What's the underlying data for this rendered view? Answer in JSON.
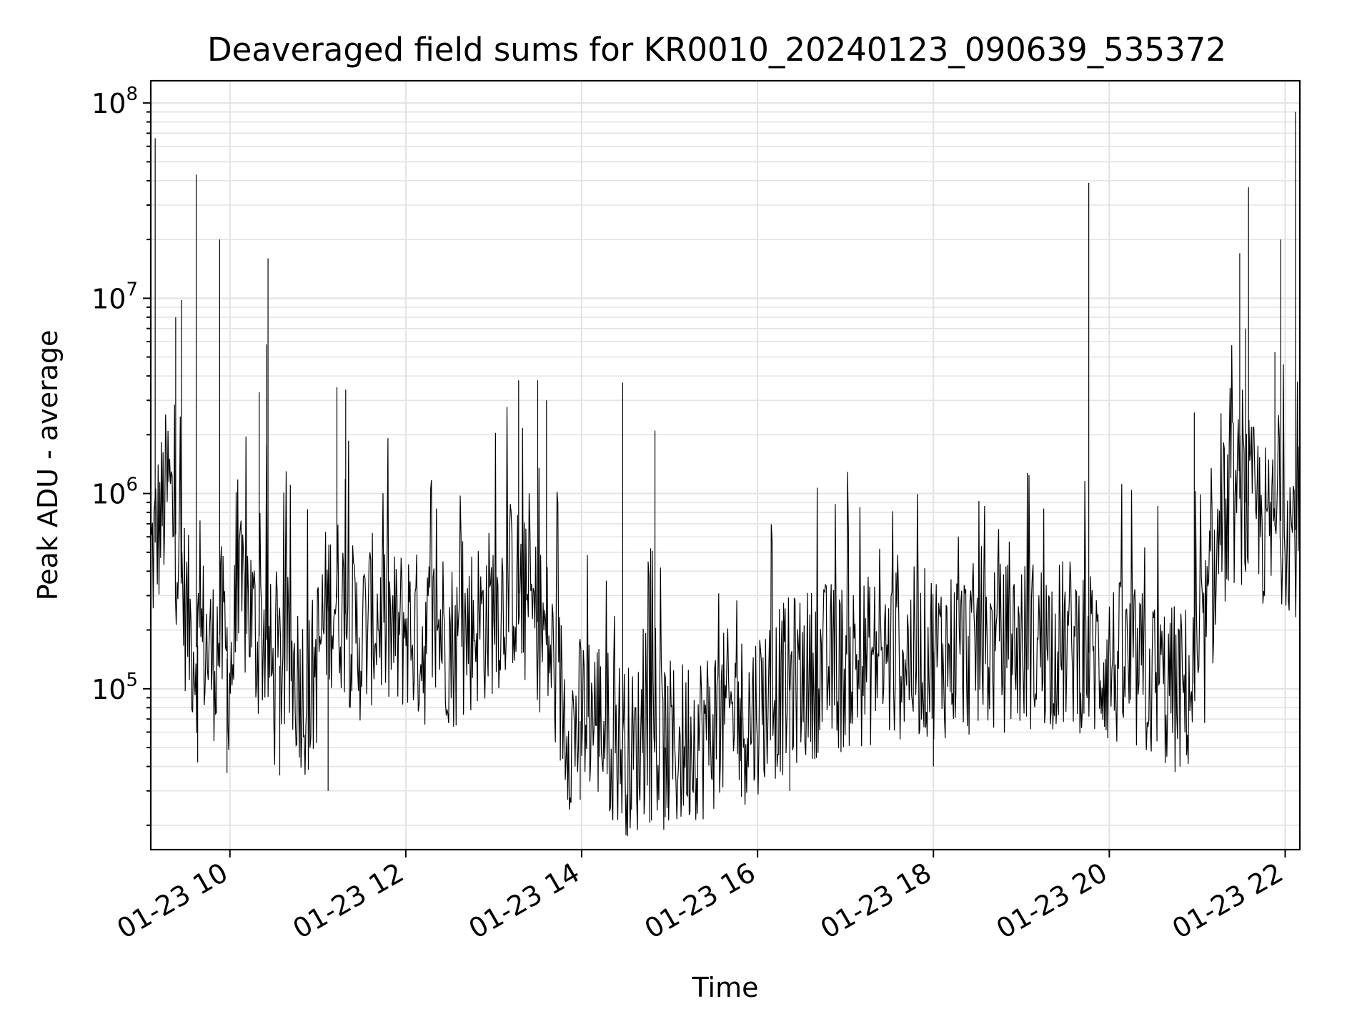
{
  "chart_data": {
    "type": "line",
    "title": "Deaveraged field sums for KR0010_20240123_090639_535372",
    "xlabel": "Time",
    "ylabel": "Peak ADU - average",
    "y_scale": "log",
    "ylim": [
      15000,
      130000000
    ],
    "xlim": [
      "2024-01-23 09:06",
      "2024-01-23 22:10"
    ],
    "grid": true,
    "x_ticks": [
      "01-23 10",
      "01-23 12",
      "01-23 14",
      "01-23 16",
      "01-23 18",
      "01-23 20",
      "01-23 22"
    ],
    "y_ticks": [
      {
        "value": 100000,
        "base": "10",
        "exp": "5"
      },
      {
        "value": 1000000,
        "base": "10",
        "exp": "6"
      },
      {
        "value": 10000000,
        "base": "10",
        "exp": "7"
      },
      {
        "value": 100000000,
        "base": "10",
        "exp": "8"
      }
    ],
    "series": [
      {
        "color": "#000000",
        "x": [
          "2024-01-23 09:06",
          "2024-01-23 09:12",
          "2024-01-23 09:18",
          "2024-01-23 09:24",
          "2024-01-23 09:30",
          "2024-01-23 09:36",
          "2024-01-23 09:42",
          "2024-01-23 09:48",
          "2024-01-23 09:54",
          "2024-01-23 10:00",
          "2024-01-23 10:06",
          "2024-01-23 10:12",
          "2024-01-23 10:18",
          "2024-01-23 10:24",
          "2024-01-23 10:30",
          "2024-01-23 10:36",
          "2024-01-23 10:42",
          "2024-01-23 10:48",
          "2024-01-23 10:54",
          "2024-01-23 11:00",
          "2024-01-23 11:06",
          "2024-01-23 11:12",
          "2024-01-23 11:18",
          "2024-01-23 11:24",
          "2024-01-23 11:30",
          "2024-01-23 11:36",
          "2024-01-23 11:42",
          "2024-01-23 11:48",
          "2024-01-23 11:54",
          "2024-01-23 12:00",
          "2024-01-23 12:06",
          "2024-01-23 12:12",
          "2024-01-23 12:18",
          "2024-01-23 12:24",
          "2024-01-23 12:30",
          "2024-01-23 12:36",
          "2024-01-23 12:42",
          "2024-01-23 12:48",
          "2024-01-23 12:54",
          "2024-01-23 13:00",
          "2024-01-23 13:06",
          "2024-01-23 13:12",
          "2024-01-23 13:18",
          "2024-01-23 13:24",
          "2024-01-23 13:30",
          "2024-01-23 13:36",
          "2024-01-23 13:42",
          "2024-01-23 13:48",
          "2024-01-23 13:54",
          "2024-01-23 14:00",
          "2024-01-23 14:06",
          "2024-01-23 14:12",
          "2024-01-23 14:18",
          "2024-01-23 14:24",
          "2024-01-23 14:30",
          "2024-01-23 14:36",
          "2024-01-23 14:42",
          "2024-01-23 14:48",
          "2024-01-23 14:54",
          "2024-01-23 15:00",
          "2024-01-23 15:06",
          "2024-01-23 15:12",
          "2024-01-23 15:18",
          "2024-01-23 15:24",
          "2024-01-23 15:30",
          "2024-01-23 15:36",
          "2024-01-23 15:42",
          "2024-01-23 15:48",
          "2024-01-23 15:54",
          "2024-01-23 16:00",
          "2024-01-23 16:06",
          "2024-01-23 16:12",
          "2024-01-23 16:18",
          "2024-01-23 16:24",
          "2024-01-23 16:30",
          "2024-01-23 16:36",
          "2024-01-23 16:42",
          "2024-01-23 16:48",
          "2024-01-23 16:54",
          "2024-01-23 17:00",
          "2024-01-23 17:06",
          "2024-01-23 17:12",
          "2024-01-23 17:18",
          "2024-01-23 17:24",
          "2024-01-23 17:30",
          "2024-01-23 17:36",
          "2024-01-23 17:42",
          "2024-01-23 17:48",
          "2024-01-23 17:54",
          "2024-01-23 18:00",
          "2024-01-23 18:06",
          "2024-01-23 18:12",
          "2024-01-23 18:18",
          "2024-01-23 18:24",
          "2024-01-23 18:30",
          "2024-01-23 18:36",
          "2024-01-23 18:42",
          "2024-01-23 18:48",
          "2024-01-23 18:54",
          "2024-01-23 19:00",
          "2024-01-23 19:06",
          "2024-01-23 19:12",
          "2024-01-23 19:18",
          "2024-01-23 19:24",
          "2024-01-23 19:30",
          "2024-01-23 19:36",
          "2024-01-23 19:42",
          "2024-01-23 19:48",
          "2024-01-23 19:54",
          "2024-01-23 20:00",
          "2024-01-23 20:06",
          "2024-01-23 20:12",
          "2024-01-23 20:18",
          "2024-01-23 20:24",
          "2024-01-23 20:30",
          "2024-01-23 20:36",
          "2024-01-23 20:42",
          "2024-01-23 20:48",
          "2024-01-23 20:54",
          "2024-01-23 21:00",
          "2024-01-23 21:06",
          "2024-01-23 21:12",
          "2024-01-23 21:18",
          "2024-01-23 21:24",
          "2024-01-23 21:30",
          "2024-01-23 21:36",
          "2024-01-23 21:42",
          "2024-01-23 21:48",
          "2024-01-23 21:54",
          "2024-01-23 22:00",
          "2024-01-23 22:06"
        ],
        "y": [
          450000,
          700000,
          1100000,
          550000,
          250000,
          160000,
          180000,
          140000,
          200000,
          120000,
          250000,
          300000,
          180000,
          200000,
          100000,
          150000,
          130000,
          110000,
          90000,
          150000,
          260000,
          300000,
          250000,
          200000,
          180000,
          220000,
          240000,
          200000,
          180000,
          220000,
          190000,
          170000,
          200000,
          210000,
          180000,
          160000,
          200000,
          220000,
          230000,
          260000,
          280000,
          350000,
          300000,
          250000,
          220000,
          180000,
          120000,
          80000,
          60000,
          70000,
          80000,
          70000,
          60000,
          55000,
          50000,
          45000,
          60000,
          55000,
          50000,
          50000,
          48000,
          55000,
          60000,
          58000,
          65000,
          70000,
          75000,
          72000,
          70000,
          80000,
          90000,
          95000,
          100000,
          110000,
          115000,
          120000,
          125000,
          130000,
          128000,
          130000,
          135000,
          138000,
          140000,
          145000,
          140000,
          150000,
          148000,
          152000,
          150000,
          155000,
          150000,
          158000,
          160000,
          155000,
          162000,
          160000,
          158000,
          165000,
          168000,
          165000,
          170000,
          168000,
          172000,
          170000,
          165000,
          175000,
          160000,
          150000,
          140000,
          135000,
          130000,
          125000,
          120000,
          115000,
          110000,
          105000,
          100000,
          95000,
          100000,
          110000,
          200000,
          400000,
          700000,
          900000,
          950000,
          850000,
          800000,
          600000,
          700000,
          750000,
          650000
        ],
        "spikes": [
          {
            "x": "2024-01-23 09:09",
            "y": 66000000
          },
          {
            "x": "2024-01-23 09:23",
            "y": 8000000
          },
          {
            "x": "2024-01-23 09:27",
            "y": 9800000
          },
          {
            "x": "2024-01-23 09:37",
            "y": 43000000
          },
          {
            "x": "2024-01-23 09:53",
            "y": 20000000
          },
          {
            "x": "2024-01-23 10:26",
            "y": 16000000
          },
          {
            "x": "2024-01-23 10:25",
            "y": 5800000
          },
          {
            "x": "2024-01-23 10:20",
            "y": 3300000
          },
          {
            "x": "2024-01-23 11:13",
            "y": 3500000
          },
          {
            "x": "2024-01-23 11:19",
            "y": 3400000
          },
          {
            "x": "2024-01-23 13:17",
            "y": 3800000
          },
          {
            "x": "2024-01-23 13:30",
            "y": 3800000
          },
          {
            "x": "2024-01-23 13:36",
            "y": 3000000
          },
          {
            "x": "2024-01-23 14:28",
            "y": 3700000
          },
          {
            "x": "2024-01-23 14:50",
            "y": 2100000
          },
          {
            "x": "2024-01-23 19:46",
            "y": 39000000
          },
          {
            "x": "2024-01-23 20:58",
            "y": 2600000
          },
          {
            "x": "2024-01-23 21:29",
            "y": 17000000
          },
          {
            "x": "2024-01-23 21:33",
            "y": 7000000
          },
          {
            "x": "2024-01-23 21:35",
            "y": 37000000
          },
          {
            "x": "2024-01-23 21:53",
            "y": 5300000
          },
          {
            "x": "2024-01-23 21:57",
            "y": 20000000
          },
          {
            "x": "2024-01-23 22:07",
            "y": 90000000
          }
        ],
        "dips": [
          {
            "x": "2024-01-23 09:38",
            "y": 42000
          },
          {
            "x": "2024-01-23 09:58",
            "y": 37000
          },
          {
            "x": "2024-01-23 10:34",
            "y": 36000
          },
          {
            "x": "2024-01-23 11:07",
            "y": 30000
          },
          {
            "x": "2024-01-23 13:59",
            "y": 27000
          },
          {
            "x": "2024-01-23 14:34",
            "y": 24000
          },
          {
            "x": "2024-01-23 14:57",
            "y": 22000
          },
          {
            "x": "2024-01-23 15:49",
            "y": 28000
          },
          {
            "x": "2024-01-23 16:22",
            "y": 30000
          },
          {
            "x": "2024-01-23 18:00",
            "y": 40000
          }
        ]
      }
    ]
  }
}
